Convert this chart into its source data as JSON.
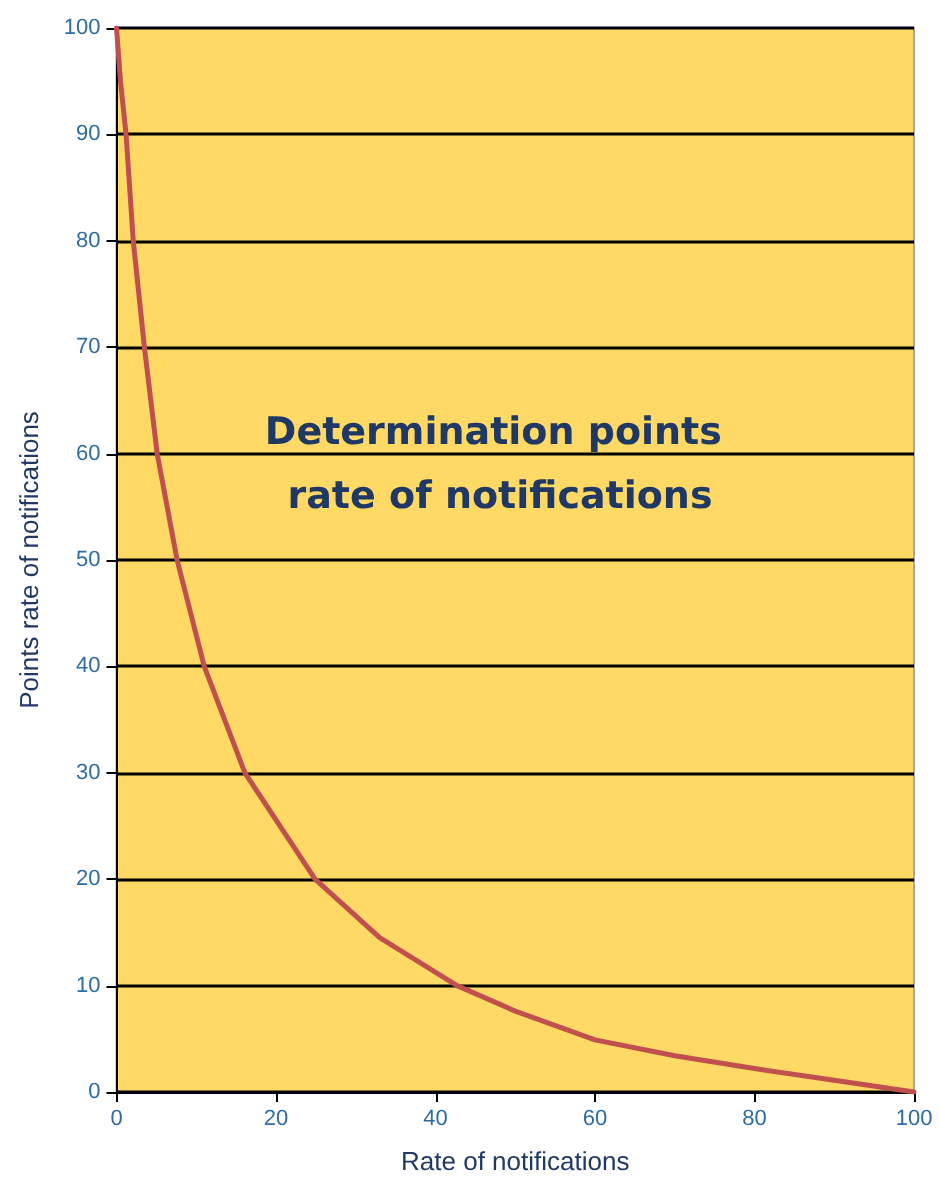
{
  "chart_data": {
    "type": "line",
    "title": "Determination points rate of notifications",
    "xlabel": "Rate of notifications",
    "ylabel": "Points rate of notifications",
    "x": [
      0,
      0.5,
      1.2,
      2.1,
      3.5,
      5.1,
      7.6,
      11.0,
      16.1,
      24.9,
      33,
      42.7,
      50,
      60,
      70,
      80,
      90,
      100
    ],
    "series": [
      {
        "color": "#c0504d",
        "values": [
          100,
          95,
          90,
          80,
          70,
          60,
          50,
          40,
          30,
          20,
          14.5,
          10,
          7.6,
          4.9,
          3.4,
          2.2,
          1.1,
          0
        ]
      }
    ],
    "xlim": [
      0,
      100
    ],
    "ylim": [
      0,
      100
    ],
    "xticks": [
      0,
      20,
      40,
      60,
      80,
      100
    ],
    "yticks": [
      0,
      10,
      20,
      30,
      40,
      50,
      60,
      70,
      80,
      90,
      100
    ],
    "grid": "y",
    "marker": "none",
    "line_style": "solid"
  }
}
